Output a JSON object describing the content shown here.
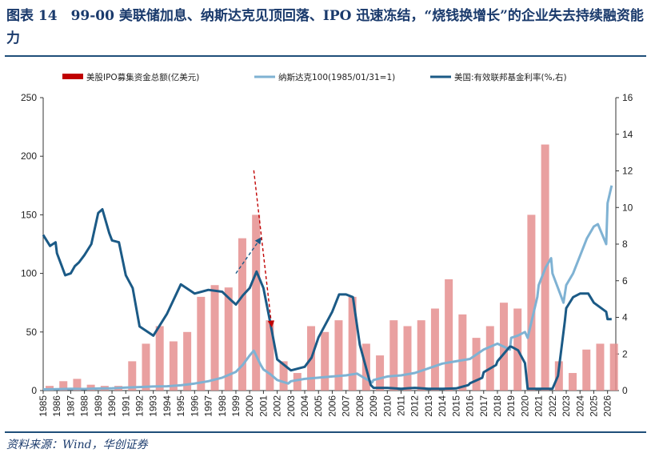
{
  "title": "图表 14　99-00 美联储加息、纳斯达克见顶回落、IPO 迅速冻结，“烧钱换增长”的企业失去持续融资能力",
  "source": "资料来源：Wind，华创证券",
  "chart_data": {
    "type": "bar+line",
    "x_tick_labels": [
      "1985",
      "1986",
      "1987",
      "1988",
      "1989",
      "1990",
      "1991",
      "1992",
      "1993",
      "1994",
      "1995",
      "1996",
      "1997",
      "1998",
      "1999",
      "2000",
      "2001",
      "2002",
      "2003",
      "2004",
      "2005",
      "2006",
      "2007",
      "2008",
      "2009",
      "2010",
      "2011",
      "2012",
      "2013",
      "2014",
      "2015",
      "2016",
      "2017",
      "2018",
      "2019",
      "2020",
      "2021",
      "2022",
      "2023",
      "2024",
      "2025",
      "2026"
    ],
    "left_axis": {
      "min": 0,
      "max": 250,
      "ticks": [
        "0",
        "50",
        "100",
        "150",
        "200",
        "250"
      ]
    },
    "right_axis": {
      "min": 0,
      "max": 16,
      "ticks": [
        "0",
        "2",
        "4",
        "6",
        "8",
        "10",
        "12",
        "14",
        "16"
      ]
    },
    "legend": [
      {
        "label": "美股IPO募集资金总额(亿美元)",
        "color": "#c00000",
        "kind": "bar"
      },
      {
        "label": "纳斯达克100(1985/01/31=1)",
        "color": "#7fb2d3",
        "kind": "line"
      },
      {
        "label": "美国:有效联邦基金利率(%,右)",
        "color": "#1b5a86",
        "kind": "line"
      }
    ],
    "series": [
      {
        "name": "美股IPO募集资金总额(亿美元)",
        "axis": "left",
        "type": "bar",
        "x": [
          1985,
          1986,
          1987,
          1988,
          1989,
          1990,
          1991,
          1992,
          1993,
          1994,
          1995,
          1996,
          1997,
          1998,
          1999,
          2000,
          2001,
          2002,
          2003,
          2004,
          2005,
          2006,
          2007,
          2008,
          2009,
          2010,
          2011,
          2012,
          2013,
          2014,
          2015,
          2016,
          2017,
          2018,
          2019,
          2020,
          2021,
          2022,
          2023,
          2024,
          2025,
          2026
        ],
        "values": [
          4,
          8,
          10,
          5,
          4,
          4,
          25,
          40,
          55,
          42,
          50,
          80,
          90,
          88,
          130,
          150,
          60,
          25,
          15,
          55,
          50,
          60,
          80,
          40,
          30,
          60,
          55,
          60,
          70,
          95,
          65,
          45,
          55,
          75,
          70,
          150,
          210,
          25,
          15,
          35,
          40,
          40
        ]
      },
      {
        "name": "纳斯达克100(1985/01/31=1)",
        "axis": "left",
        "type": "line",
        "x": [
          1985,
          1986,
          1987,
          1988,
          1989,
          1990,
          1991,
          1992,
          1993,
          1994,
          1995,
          1996,
          1997,
          1998,
          1999,
          1999.5,
          2000,
          2000.3,
          2000.8,
          2001,
          2001.5,
          2002,
          2002.8,
          2003,
          2004,
          2005,
          2006,
          2007,
          2007.8,
          2008.3,
          2008.9,
          2009,
          2010,
          2011,
          2012,
          2013,
          2014,
          2015,
          2016,
          2017,
          2018,
          2018.9,
          2019,
          2019.5,
          2020,
          2020.2,
          2020.9,
          2021,
          2021.5,
          2021.9,
          2022,
          2022.8,
          2023,
          2023.5,
          2024,
          2024.5,
          2025,
          2025.3,
          2025.9,
          2026,
          2026.3
        ],
        "values": [
          1,
          1.2,
          1.5,
          1.4,
          1.8,
          2,
          2.5,
          3,
          3.5,
          3.7,
          4.5,
          6,
          8,
          11,
          16,
          22,
          30,
          34,
          22,
          18,
          14,
          9,
          6,
          8,
          10,
          11,
          12,
          13,
          14.5,
          11,
          7,
          9,
          12,
          13,
          15,
          19,
          23,
          25,
          27,
          35,
          40,
          35,
          45,
          47,
          50,
          45,
          80,
          90,
          105,
          113,
          100,
          75,
          90,
          100,
          115,
          130,
          140,
          142,
          125,
          160,
          175
        ]
      },
      {
        "name": "美国:有效联邦基金利率(%,右)",
        "axis": "right",
        "type": "line",
        "x": [
          1985,
          1985.5,
          1985.9,
          1986,
          1986.3,
          1986.6,
          1987,
          1987.3,
          1987.6,
          1988,
          1988.5,
          1989,
          1989.3,
          1989.8,
          1990,
          1990.5,
          1991,
          1991.5,
          1992,
          1993,
          1994,
          1995,
          1996,
          1997,
          1998,
          1998.7,
          1999,
          1999.5,
          2000,
          2000.5,
          2001,
          2001.5,
          2002,
          2003,
          2004,
          2004.5,
          2005,
          2006,
          2006.5,
          2007,
          2007.5,
          2008,
          2008.8,
          2009,
          2010,
          2011,
          2012,
          2013,
          2014,
          2015,
          2015.9,
          2016,
          2016.9,
          2017,
          2017.9,
          2018,
          2018.9,
          2019,
          2019.5,
          2020,
          2020.2,
          2021,
          2022,
          2022.4,
          2022.9,
          2023,
          2023.5,
          2024,
          2024.6,
          2025,
          2025.9,
          2026,
          2026.3
        ],
        "values": [
          8.5,
          7.9,
          8.1,
          7.5,
          6.9,
          6.3,
          6.4,
          6.8,
          7,
          7.4,
          8,
          9.7,
          9.9,
          8.6,
          8.2,
          8.1,
          6.3,
          5.6,
          3.5,
          3,
          4.2,
          5.8,
          5.3,
          5.5,
          5.4,
          4.9,
          4.7,
          5.2,
          5.6,
          6.5,
          5.6,
          3.7,
          1.7,
          1.1,
          1.3,
          1.8,
          2.9,
          4.3,
          5.25,
          5.25,
          5.1,
          2.5,
          0.3,
          0.15,
          0.15,
          0.1,
          0.15,
          0.1,
          0.1,
          0.12,
          0.3,
          0.4,
          0.7,
          1,
          1.4,
          1.6,
          2.4,
          2.4,
          2.2,
          1.5,
          0.1,
          0.1,
          0.1,
          0.8,
          3.8,
          4.5,
          5.1,
          5.3,
          5.3,
          4.8,
          4.3,
          3.9,
          3.9
        ]
      }
    ],
    "annotations": [
      {
        "kind": "arrow",
        "style": "dashed",
        "color": "#1b5a86",
        "from": [
          1999,
          100
        ],
        "to": [
          2000.8,
          130
        ]
      },
      {
        "kind": "arrow",
        "style": "dashed",
        "color": "#c00000",
        "from": [
          2000.3,
          188
        ],
        "to": [
          2001.6,
          55
        ]
      }
    ]
  }
}
